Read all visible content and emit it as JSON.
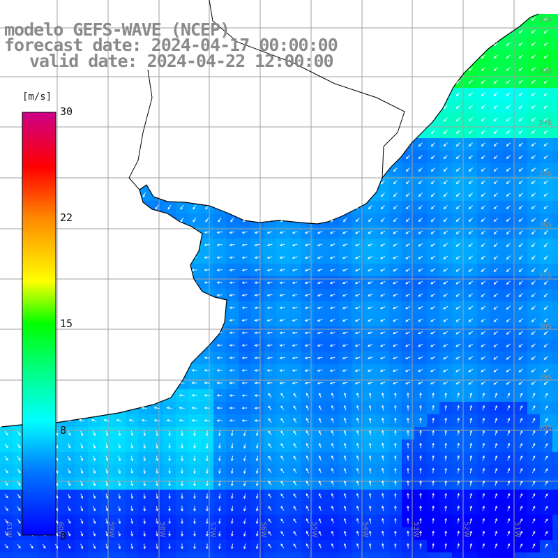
{
  "header": {
    "line1": "modelo GEFS-WAVE (NCEP)",
    "line2": "forecast date: 2024-04-17 00:00:00",
    "line3": "valid date: 2024-04-22 12:00:00"
  },
  "colorbar": {
    "unit": "[m/s]",
    "ticks": [
      "30",
      "22",
      "15",
      "8",
      "0"
    ],
    "range": [
      0,
      30
    ],
    "colors": [
      "#0000ff",
      "#00aaff",
      "#00ffff",
      "#00ff00",
      "#ffff00",
      "#ff8000",
      "#ff0000",
      "#cc0088"
    ]
  },
  "map": {
    "field": "wind speed",
    "vector_color": "#ffffff",
    "land_color": "#ffffff",
    "coast_color": "#000000",
    "grid_color": "#a0a0a0",
    "lat_labels": [
      "32S",
      "33S",
      "34S",
      "35S",
      "36S",
      "37S",
      "38S",
      "39S",
      "40S"
    ],
    "lon_labels": [
      "61W",
      "60W",
      "59W",
      "58W",
      "57W",
      "56W",
      "55W",
      "54W",
      "53W",
      "52W",
      "51W"
    ]
  }
}
